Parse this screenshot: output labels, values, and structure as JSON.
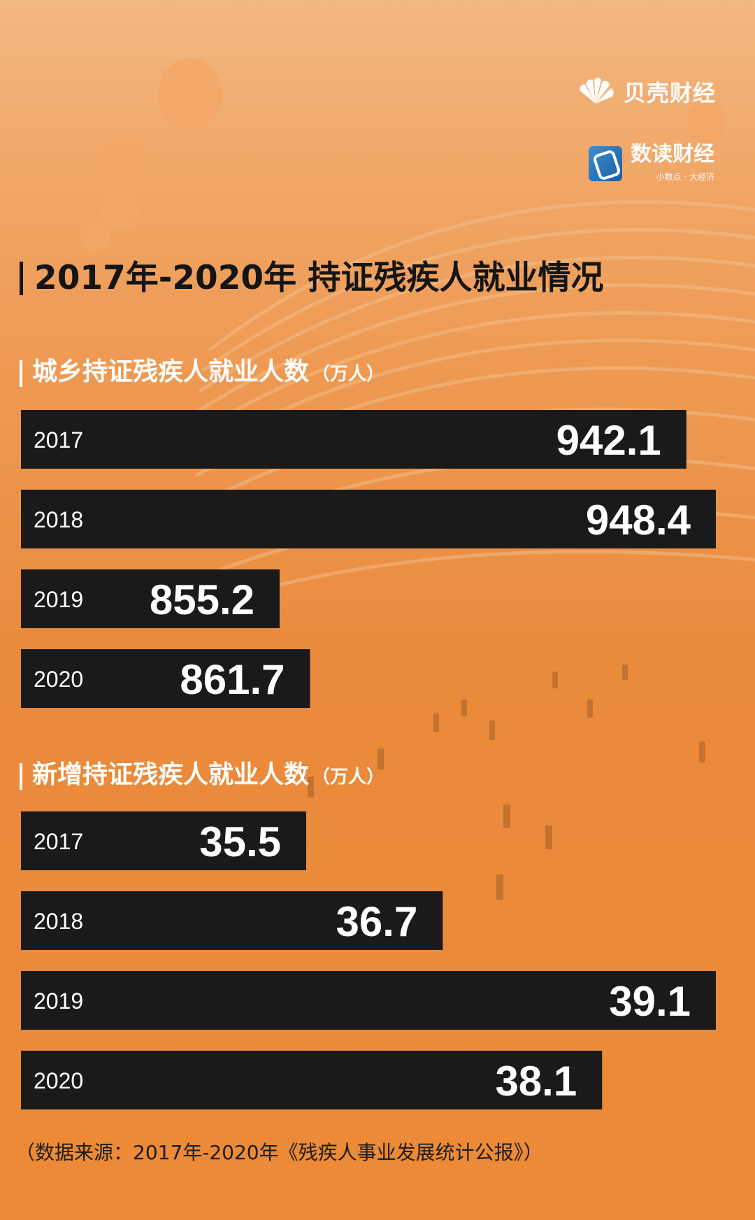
{
  "brand": {
    "beike_name": "贝壳财经",
    "shudu_name": "数读财经",
    "shudu_slogan": "小数点 · 大经济"
  },
  "title": "2017年-2020年 持证残疾人就业情况",
  "source": "（数据来源：2017年-2020年《残疾人事业发展统计公报》）",
  "colors": {
    "bar": "#1a1a1a",
    "background": "#ec9648",
    "text_light": "#ffffff",
    "text_dark": "#151515"
  },
  "chart_data": [
    {
      "type": "bar",
      "orientation": "horizontal",
      "title": "城乡持证残疾人就业人数",
      "unit": "（万人）",
      "categories": [
        "2017",
        "2018",
        "2019",
        "2020"
      ],
      "values": [
        942.1,
        948.4,
        855.2,
        861.7
      ],
      "value_labels": [
        "942.1",
        "948.4",
        "855.2",
        "861.7"
      ]
    },
    {
      "type": "bar",
      "orientation": "horizontal",
      "title": "新增持证残疾人就业人数",
      "unit": "（万人）",
      "categories": [
        "2017",
        "2018",
        "2019",
        "2020"
      ],
      "values": [
        35.5,
        36.7,
        39.1,
        38.1
      ],
      "value_labels": [
        "35.5",
        "36.7",
        "39.1",
        "38.1"
      ]
    }
  ]
}
